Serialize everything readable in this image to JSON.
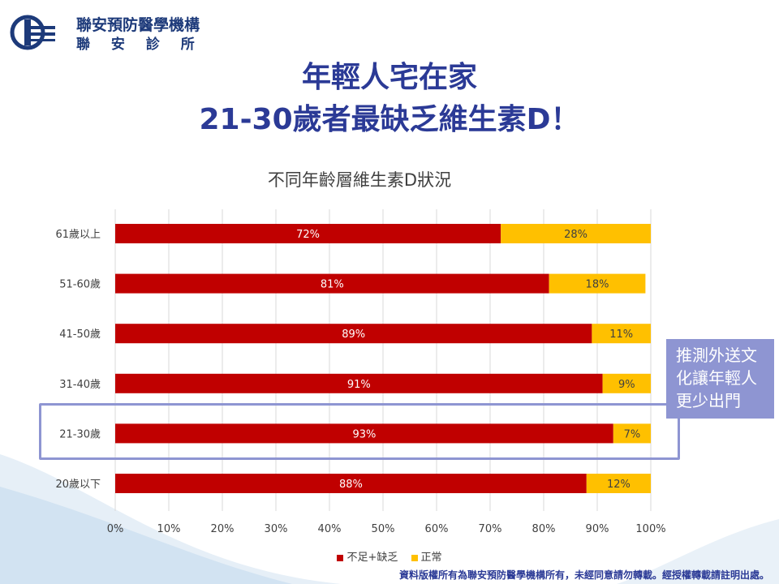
{
  "logo": {
    "name": "聯安預防醫學機構",
    "sub": "聯 安 診 所"
  },
  "headline": {
    "line1": "年輕人宅在家",
    "line2": "21-30歲者最缺乏維生素D！"
  },
  "callout": {
    "lines": [
      "推測外送文",
      "化讓年輕人",
      "更少出門"
    ]
  },
  "footer": "資料版權所有為聯安預防醫學機構所有，未經同意請勿轉載。經授權轉載請註明出處。",
  "chart_data": {
    "type": "bar",
    "orientation": "horizontal",
    "stacked": "percent",
    "title": "不同年齡層維生素D狀況",
    "categories": [
      "61歲以上",
      "51-60歲",
      "41-50歲",
      "31-40歲",
      "21-30歲",
      "20歲以下"
    ],
    "series": [
      {
        "name": "不足+缺乏",
        "values": [
          72,
          81,
          89,
          91,
          93,
          88
        ],
        "labels": [
          "72%",
          "81%",
          "89%",
          "91%",
          "93%",
          "88%"
        ],
        "color": "#c00000"
      },
      {
        "name": "正常",
        "values": [
          28,
          18,
          11,
          9,
          7,
          12
        ],
        "labels": [
          "28%",
          "18%",
          "11%",
          "9%",
          "7%",
          "12%"
        ],
        "color": "#ffc000"
      }
    ],
    "xlim": [
      0,
      100
    ],
    "xticks": [
      "0%",
      "10%",
      "20%",
      "30%",
      "40%",
      "50%",
      "60%",
      "70%",
      "80%",
      "90%",
      "100%"
    ],
    "grid": true,
    "legend": "bottom",
    "highlighted_category": "21-30歲"
  }
}
